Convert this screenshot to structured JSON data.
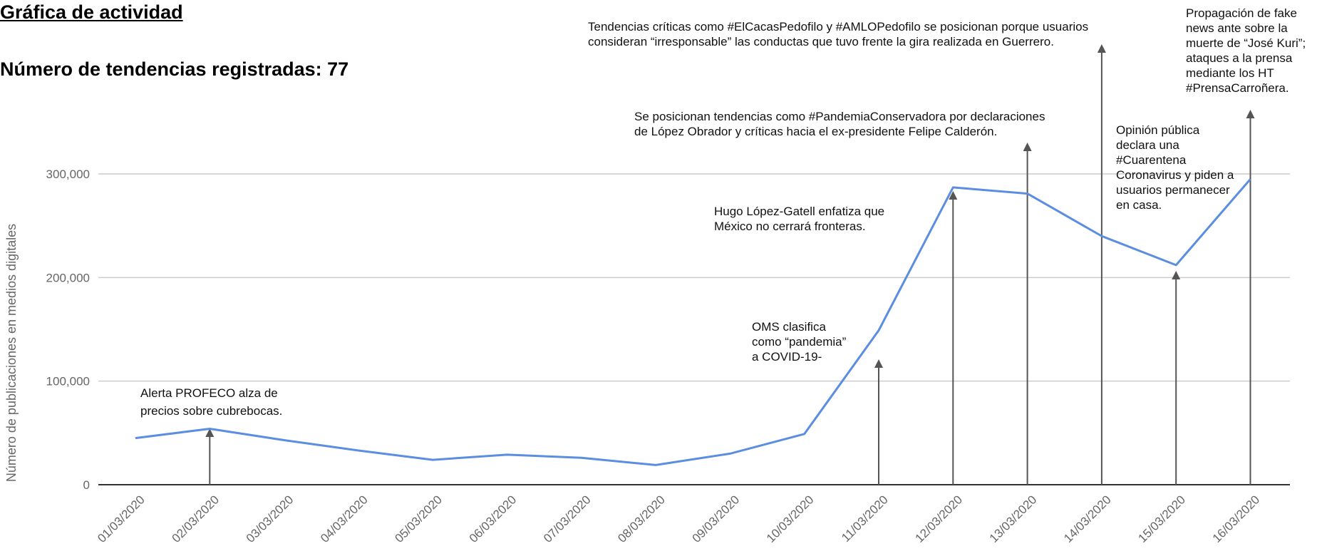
{
  "header": {
    "title": "Gráfica de actividad",
    "subtitle": "Número de tendencias registradas: 77"
  },
  "chart_data": {
    "type": "line",
    "ylabel": "Número de publicaciones en medios digitales",
    "xlabel": "",
    "ylim": [
      0,
      300000
    ],
    "yticks": [
      0,
      100000,
      200000,
      300000
    ],
    "ytick_labels": [
      "0",
      "100,000",
      "200,000",
      "300,000"
    ],
    "grid": true,
    "color": "#5b8ee0",
    "categories": [
      "01/03/2020",
      "02/03/2020",
      "03/03/2020",
      "04/03/2020",
      "05/03/2020",
      "06/03/2020",
      "07/03/2020",
      "08/03/2020",
      "09/03/2020",
      "10/03/2020",
      "11/03/2020",
      "12/03/2020",
      "13/03/2020",
      "14/03/2020",
      "15/03/2020",
      "16/03/2020"
    ],
    "values": [
      45000,
      54000,
      43000,
      33000,
      24000,
      29000,
      26000,
      19000,
      30000,
      49000,
      149000,
      287000,
      281000,
      240000,
      212000,
      295000
    ],
    "annotations": [
      {
        "category": "02/03/2020",
        "lines": [
          "Alerta PROFECO alza de",
          "precios sobre cubrebocas."
        ]
      },
      {
        "category": "11/03/2020",
        "lines": [
          "OMS clasifica",
          "como “pandemia”",
          "a COVID-19-"
        ]
      },
      {
        "category": "12/03/2020",
        "lines": [
          "Hugo López-Gatell enfatiza que",
          "México no cerrará fronteras."
        ]
      },
      {
        "category": "13/03/2020",
        "lines": [
          "Se posicionan tendencias como #PandemiaConservadora por declaraciones",
          "de López Obrador y críticas hacia el ex-presidente Felipe Calderón."
        ]
      },
      {
        "category": "14/03/2020",
        "lines": [
          "Tendencias críticas como #ElCacasPedofilo y #AMLOPedofilo se posicionan porque usuarios",
          "consideran “irresponsable” las conductas que tuvo frente la gira realizada en Guerrero."
        ]
      },
      {
        "category": "15/03/2020",
        "lines": [
          "Opinión pública",
          "declara una",
          "#Cuarentena",
          "Coronavirus y piden a",
          "usuarios permanecer",
          "en casa."
        ]
      },
      {
        "category": "16/03/2020",
        "lines": [
          "Propagación de fake",
          "news ante sobre la",
          "muerte de “José Kuri”;",
          "ataques a la prensa",
          "mediante los HT",
          "#PrensaCarroñera."
        ]
      }
    ]
  }
}
